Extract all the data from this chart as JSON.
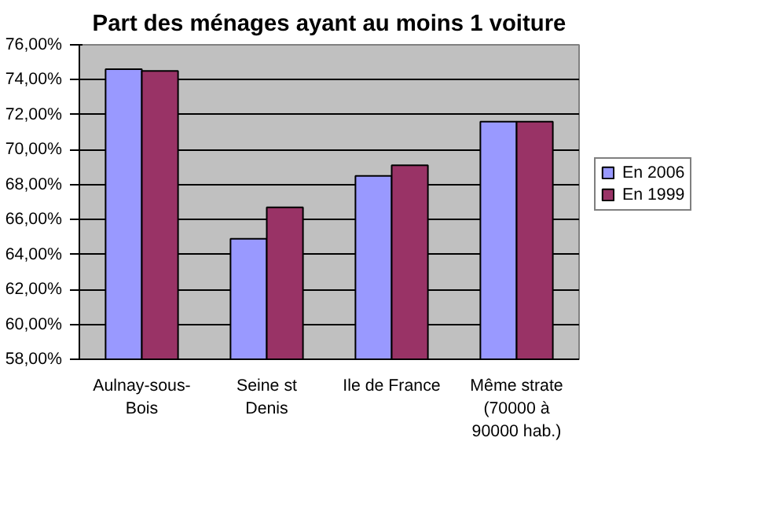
{
  "chart_data": {
    "type": "bar",
    "title": "Part des ménages ayant au moins 1 voiture",
    "categories": [
      "Aulnay-sous-\nBois",
      "Seine st\nDenis",
      "Ile de France",
      "Même strate\n(70000 à\n90000 hab.)"
    ],
    "series": [
      {
        "name": "En 2006",
        "color": "#9999ff",
        "values": [
          74.6,
          64.9,
          68.5,
          71.6
        ]
      },
      {
        "name": "En 1999",
        "color": "#993366",
        "values": [
          74.5,
          66.7,
          69.1,
          71.6
        ]
      }
    ],
    "ylim": [
      58,
      76
    ],
    "yticks": [
      {
        "value": 58,
        "label": "58,00%"
      },
      {
        "value": 60,
        "label": "60,00%"
      },
      {
        "value": 62,
        "label": "62,00%"
      },
      {
        "value": 64,
        "label": "64,00%"
      },
      {
        "value": 66,
        "label": "66,00%"
      },
      {
        "value": 68,
        "label": "68,00%"
      },
      {
        "value": 70,
        "label": "70,00%"
      },
      {
        "value": 72,
        "label": "72,00%"
      },
      {
        "value": 74,
        "label": "74,00%"
      },
      {
        "value": 76,
        "label": "76,00%"
      }
    ],
    "grid": "y",
    "legend": "right"
  }
}
